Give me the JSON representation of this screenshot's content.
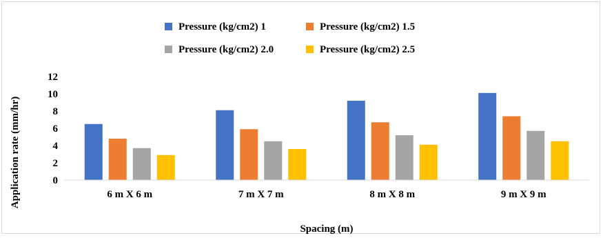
{
  "chart_data": {
    "type": "bar",
    "title": "",
    "xlabel": "Spacing (m)",
    "ylabel": "Application rate (mm/hr)",
    "categories": [
      "6 m X 6 m",
      "7 m X 7 m",
      "8 m X 8 m",
      "9 m X 9 m"
    ],
    "series": [
      {
        "name": "Pressure (kg/cm2) 1",
        "color": "#4472c4",
        "values": [
          6.5,
          8.1,
          9.2,
          10.1
        ]
      },
      {
        "name": "Pressure (kg/cm2) 1.5",
        "color": "#ed7d31",
        "values": [
          4.8,
          5.9,
          6.7,
          7.4
        ]
      },
      {
        "name": "Pressure (kg/cm2) 2.0",
        "color": "#a5a5a5",
        "values": [
          3.7,
          4.5,
          5.2,
          5.7
        ]
      },
      {
        "name": "Pressure (kg/cm2) 2.5",
        "color": "#ffc000",
        "values": [
          2.9,
          3.6,
          4.1,
          4.5
        ]
      }
    ],
    "ylim": [
      0,
      12
    ],
    "yticks": [
      0,
      2,
      4,
      6,
      8,
      10,
      12
    ],
    "grid": false,
    "legend_position": "top"
  }
}
